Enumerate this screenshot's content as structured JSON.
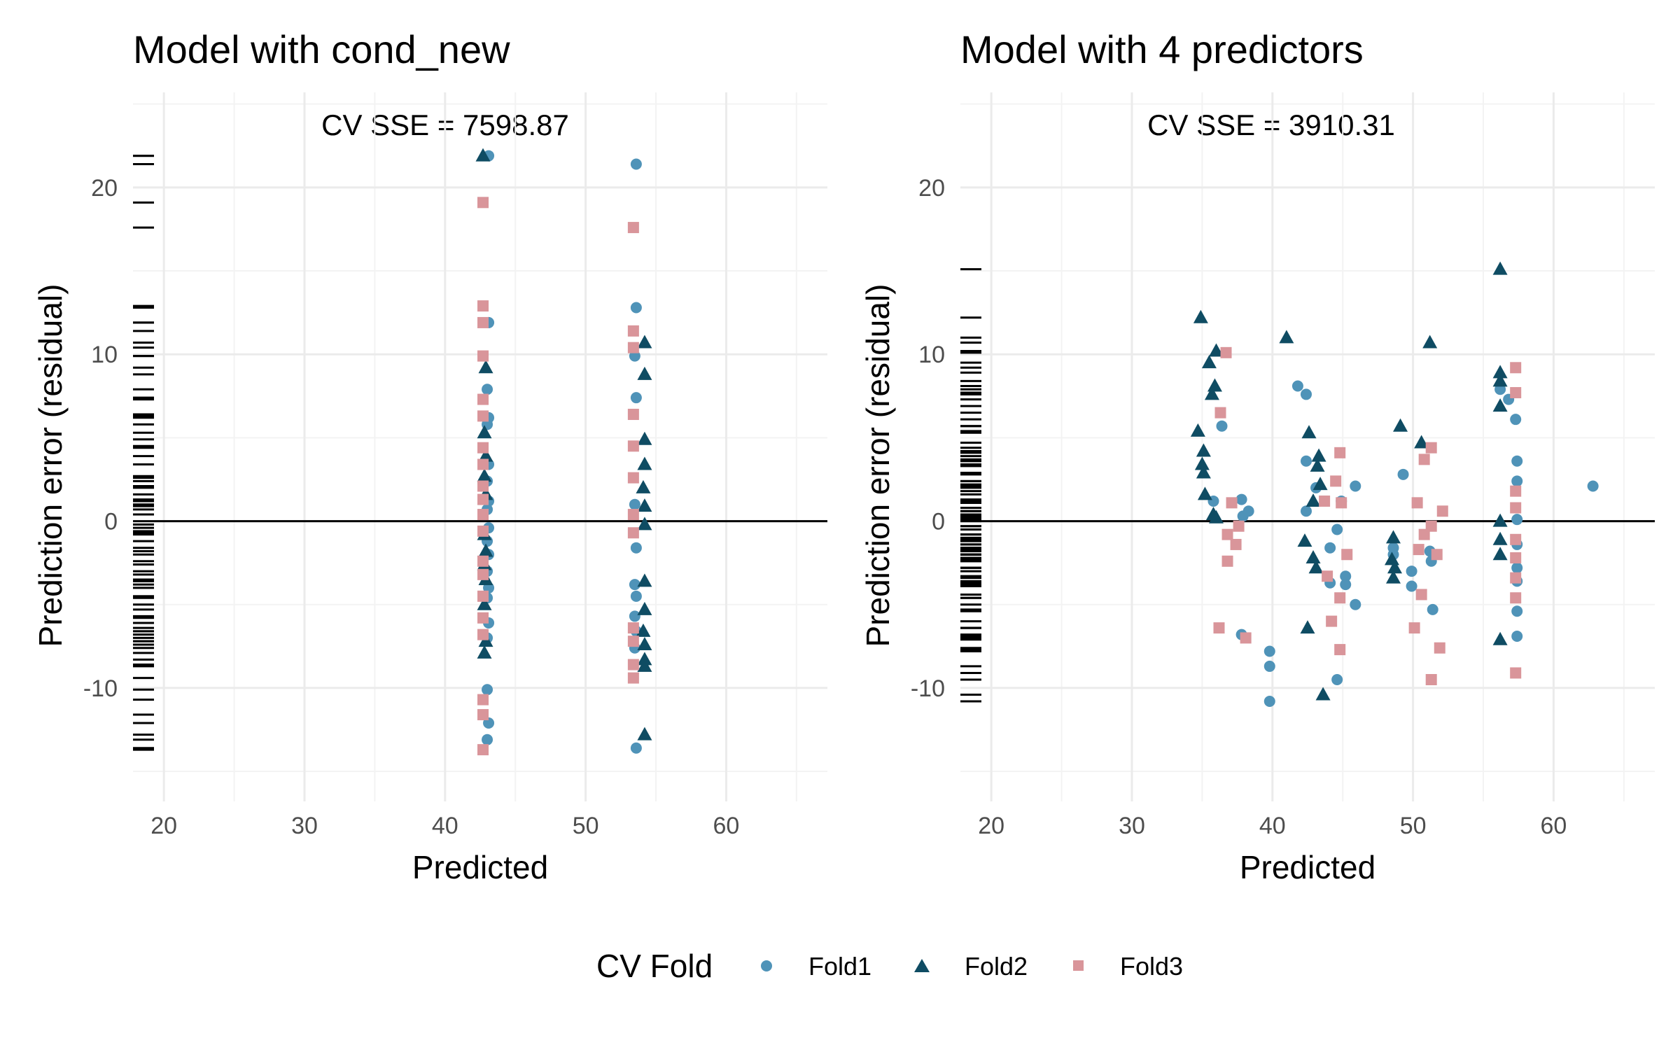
{
  "legend": {
    "title": "CV Fold",
    "items": [
      {
        "label": "Fold1",
        "shape": "circle",
        "color": "#4f93b8"
      },
      {
        "label": "Fold2",
        "shape": "triangle",
        "color": "#0f4c63"
      },
      {
        "label": "Fold3",
        "shape": "square",
        "color": "#d9959a"
      }
    ]
  },
  "chart_data": [
    {
      "type": "scatter",
      "title": "Model with cond_new",
      "annotation": "CV SSE = 7598.87",
      "xlabel": "Predicted",
      "ylabel": "Prediction error (residual)",
      "xlim": [
        17.8,
        67.2
      ],
      "ylim": [
        -16.8,
        25.7
      ],
      "xticks": [
        20,
        30,
        40,
        50,
        60
      ],
      "yticks": [
        -10,
        0,
        10,
        20
      ],
      "hline": 0,
      "grid": true,
      "rug": "left",
      "series": [
        {
          "name": "Fold1",
          "points": [
            [
              43.1,
              21.9
            ],
            [
              43.1,
              11.9
            ],
            [
              43.0,
              7.9
            ],
            [
              43.1,
              6.2
            ],
            [
              43.0,
              5.8
            ],
            [
              43.1,
              3.4
            ],
            [
              43.0,
              2.4
            ],
            [
              43.1,
              1.2
            ],
            [
              43.0,
              0.7
            ],
            [
              43.1,
              -0.4
            ],
            [
              43.0,
              -1.2
            ],
            [
              43.1,
              -2.0
            ],
            [
              43.0,
              -3.0
            ],
            [
              43.1,
              -4.0
            ],
            [
              43.0,
              -4.6
            ],
            [
              43.1,
              -6.1
            ],
            [
              43.0,
              -7.0
            ],
            [
              43.0,
              -10.1
            ],
            [
              43.1,
              -12.1
            ],
            [
              43.0,
              -13.1
            ],
            [
              53.6,
              21.4
            ],
            [
              53.6,
              12.8
            ],
            [
              53.5,
              9.9
            ],
            [
              53.6,
              7.4
            ],
            [
              53.5,
              1.0
            ],
            [
              53.6,
              -1.6
            ],
            [
              53.5,
              -3.8
            ],
            [
              53.6,
              -4.5
            ],
            [
              53.5,
              -5.7
            ],
            [
              53.6,
              -6.6
            ],
            [
              53.5,
              -7.6
            ],
            [
              53.6,
              -13.6
            ]
          ]
        },
        {
          "name": "Fold2",
          "points": [
            [
              42.7,
              21.9
            ],
            [
              42.9,
              9.2
            ],
            [
              42.8,
              5.3
            ],
            [
              42.9,
              3.9
            ],
            [
              42.8,
              2.7
            ],
            [
              42.9,
              1.6
            ],
            [
              42.8,
              -0.8
            ],
            [
              42.9,
              -1.8
            ],
            [
              42.8,
              -2.6
            ],
            [
              42.9,
              -3.5
            ],
            [
              42.8,
              -5.0
            ],
            [
              42.9,
              -7.2
            ],
            [
              42.8,
              -7.9
            ],
            [
              54.2,
              10.7
            ],
            [
              54.2,
              8.8
            ],
            [
              54.2,
              4.9
            ],
            [
              54.2,
              3.4
            ],
            [
              54.1,
              2.0
            ],
            [
              54.2,
              0.9
            ],
            [
              54.2,
              -0.2
            ],
            [
              54.2,
              -3.6
            ],
            [
              54.2,
              -5.3
            ],
            [
              54.1,
              -6.6
            ],
            [
              54.2,
              -7.4
            ],
            [
              54.2,
              -8.3
            ],
            [
              54.2,
              -8.7
            ],
            [
              54.2,
              -12.8
            ]
          ]
        },
        {
          "name": "Fold3",
          "points": [
            [
              42.7,
              19.1
            ],
            [
              42.7,
              12.9
            ],
            [
              42.7,
              11.9
            ],
            [
              42.7,
              9.9
            ],
            [
              42.7,
              7.3
            ],
            [
              42.7,
              6.3
            ],
            [
              42.7,
              4.4
            ],
            [
              42.7,
              3.4
            ],
            [
              42.7,
              2.1
            ],
            [
              42.7,
              1.3
            ],
            [
              42.7,
              0.4
            ],
            [
              42.7,
              -0.6
            ],
            [
              42.7,
              -2.4
            ],
            [
              42.7,
              -3.2
            ],
            [
              42.7,
              -4.5
            ],
            [
              42.7,
              -5.8
            ],
            [
              42.7,
              -6.8
            ],
            [
              42.7,
              -10.7
            ],
            [
              42.7,
              -11.6
            ],
            [
              42.7,
              -13.7
            ],
            [
              53.4,
              17.6
            ],
            [
              53.4,
              11.4
            ],
            [
              53.4,
              10.4
            ],
            [
              53.4,
              6.4
            ],
            [
              53.4,
              4.5
            ],
            [
              53.4,
              2.6
            ],
            [
              53.4,
              0.4
            ],
            [
              53.4,
              -0.7
            ],
            [
              53.4,
              -6.4
            ],
            [
              53.4,
              -7.2
            ],
            [
              53.4,
              -8.6
            ],
            [
              53.4,
              -9.4
            ]
          ]
        }
      ]
    },
    {
      "type": "scatter",
      "title": "Model with 4 predictors",
      "annotation": "CV SSE = 3910.31",
      "xlabel": "Predicted",
      "ylabel": "Prediction error (residual)",
      "xlim": [
        17.8,
        67.2
      ],
      "ylim": [
        -16.8,
        25.7
      ],
      "xticks": [
        20,
        30,
        40,
        50,
        60
      ],
      "yticks": [
        -10,
        0,
        10,
        20
      ],
      "hline": 0,
      "grid": true,
      "rug": "left",
      "series": [
        {
          "name": "Fold1",
          "points": [
            [
              35.8,
              1.2
            ],
            [
              36.4,
              5.7
            ],
            [
              37.8,
              1.3
            ],
            [
              37.9,
              0.3
            ],
            [
              38.3,
              0.6
            ],
            [
              37.8,
              -6.8
            ],
            [
              39.8,
              -7.8
            ],
            [
              39.8,
              -8.7
            ],
            [
              39.8,
              -10.8
            ],
            [
              41.8,
              8.1
            ],
            [
              42.4,
              7.6
            ],
            [
              42.4,
              3.6
            ],
            [
              42.4,
              0.6
            ],
            [
              43.1,
              2.0
            ],
            [
              44.1,
              -1.6
            ],
            [
              44.6,
              -0.5
            ],
            [
              44.9,
              1.2
            ],
            [
              45.2,
              -3.3
            ],
            [
              45.2,
              -3.8
            ],
            [
              44.6,
              -9.5
            ],
            [
              44.1,
              -3.7
            ],
            [
              45.9,
              2.1
            ],
            [
              45.9,
              -5.0
            ],
            [
              48.6,
              -1.6
            ],
            [
              48.6,
              -2.0
            ],
            [
              49.3,
              2.8
            ],
            [
              49.9,
              -3.0
            ],
            [
              49.9,
              -3.9
            ],
            [
              51.3,
              -2.4
            ],
            [
              51.4,
              -5.3
            ],
            [
              51.2,
              -1.8
            ],
            [
              56.2,
              7.9
            ],
            [
              56.8,
              7.3
            ],
            [
              57.3,
              6.1
            ],
            [
              57.4,
              3.6
            ],
            [
              57.4,
              2.4
            ],
            [
              57.4,
              0.1
            ],
            [
              57.4,
              -1.4
            ],
            [
              57.4,
              -2.8
            ],
            [
              57.4,
              -3.6
            ],
            [
              57.4,
              -5.4
            ],
            [
              57.4,
              -6.9
            ],
            [
              62.8,
              2.1
            ]
          ]
        },
        {
          "name": "Fold2",
          "points": [
            [
              34.7,
              5.4
            ],
            [
              34.9,
              12.2
            ],
            [
              35.1,
              4.2
            ],
            [
              35.0,
              3.4
            ],
            [
              35.1,
              2.9
            ],
            [
              35.2,
              1.6
            ],
            [
              35.5,
              9.5
            ],
            [
              35.7,
              7.6
            ],
            [
              35.9,
              8.1
            ],
            [
              36.0,
              10.2
            ],
            [
              35.8,
              0.4
            ],
            [
              36.0,
              0.2
            ],
            [
              41.0,
              11.0
            ],
            [
              42.3,
              -1.2
            ],
            [
              42.6,
              5.3
            ],
            [
              42.9,
              -2.2
            ],
            [
              43.1,
              -2.8
            ],
            [
              42.9,
              1.2
            ],
            [
              43.3,
              3.9
            ],
            [
              43.2,
              3.3
            ],
            [
              43.4,
              2.2
            ],
            [
              42.5,
              -6.4
            ],
            [
              43.6,
              -10.4
            ],
            [
              48.6,
              -1.0
            ],
            [
              48.5,
              -2.3
            ],
            [
              48.7,
              -2.8
            ],
            [
              48.6,
              -3.4
            ],
            [
              49.1,
              5.7
            ],
            [
              50.6,
              4.7
            ],
            [
              51.2,
              10.7
            ],
            [
              56.2,
              15.1
            ],
            [
              56.2,
              8.9
            ],
            [
              56.2,
              8.4
            ],
            [
              56.2,
              6.9
            ],
            [
              56.2,
              0.0
            ],
            [
              56.2,
              -1.1
            ],
            [
              56.2,
              -2.0
            ],
            [
              56.2,
              -7.1
            ]
          ]
        },
        {
          "name": "Fold3",
          "points": [
            [
              36.2,
              -6.4
            ],
            [
              36.3,
              6.5
            ],
            [
              36.7,
              10.1
            ],
            [
              36.8,
              -0.8
            ],
            [
              36.8,
              -2.4
            ],
            [
              37.1,
              1.1
            ],
            [
              37.4,
              -1.4
            ],
            [
              37.6,
              -0.3
            ],
            [
              38.1,
              -7.0
            ],
            [
              43.9,
              -3.3
            ],
            [
              43.7,
              1.2
            ],
            [
              44.2,
              -6.0
            ],
            [
              44.5,
              2.4
            ],
            [
              44.8,
              4.1
            ],
            [
              44.9,
              1.1
            ],
            [
              44.8,
              -4.6
            ],
            [
              44.8,
              -7.7
            ],
            [
              45.3,
              -2.0
            ],
            [
              50.3,
              1.1
            ],
            [
              50.1,
              -6.4
            ],
            [
              50.8,
              3.7
            ],
            [
              50.8,
              -0.8
            ],
            [
              51.3,
              4.4
            ],
            [
              51.3,
              -0.3
            ],
            [
              51.3,
              -9.5
            ],
            [
              51.7,
              -2.0
            ],
            [
              51.9,
              -7.6
            ],
            [
              52.1,
              0.6
            ],
            [
              57.3,
              9.2
            ],
            [
              57.3,
              7.7
            ],
            [
              57.3,
              1.8
            ],
            [
              57.3,
              0.8
            ],
            [
              57.3,
              -1.1
            ],
            [
              57.3,
              -2.2
            ],
            [
              57.3,
              -3.4
            ],
            [
              57.3,
              -4.6
            ],
            [
              57.3,
              -9.1
            ],
            [
              50.6,
              -4.4
            ],
            [
              50.4,
              -1.7
            ]
          ]
        }
      ]
    }
  ]
}
